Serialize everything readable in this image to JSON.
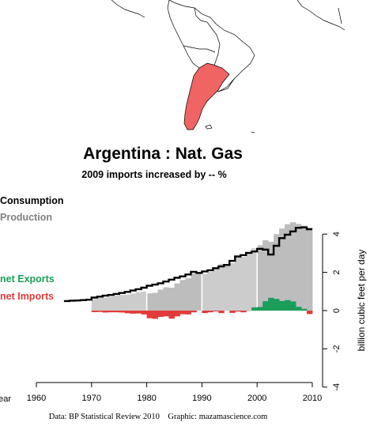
{
  "chart_data": {
    "type": "area",
    "title": "Argentina :  Nat. Gas",
    "subtitle": "2009 imports increased by -- %",
    "ylabel": "billion cubic feet per day",
    "xlabel": "Year",
    "source": "Data: BP Statistical Review 2010    Graphic: mazamascience.com",
    "xlim": [
      1960,
      2010
    ],
    "ylim": [
      -4,
      4
    ],
    "x_ticks": [
      1960,
      1970,
      1980,
      1990,
      2000,
      2010
    ],
    "y_ticks": [
      -4,
      -2,
      0,
      2,
      4
    ],
    "x_tick_labels": [
      "1960",
      "1970",
      "1980",
      "1990",
      "2000",
      "2010"
    ],
    "y_tick_labels": [
      "-4",
      "-2",
      "0",
      "2",
      "4"
    ],
    "legend": [
      "Consumption",
      "Production",
      "net Exports",
      "net Imports"
    ],
    "colors": {
      "consumption": "#000000",
      "production": "#cccccc",
      "production_alt": "#bdbdbd",
      "exports": "#1a9e5a",
      "imports": "#e33a3a",
      "decade_lines": "#ffffff",
      "map_highlight": "#f06464",
      "production_label": "#808080"
    },
    "years": [
      1965,
      1966,
      1967,
      1968,
      1969,
      1970,
      1971,
      1972,
      1973,
      1974,
      1975,
      1976,
      1977,
      1978,
      1979,
      1980,
      1981,
      1982,
      1983,
      1984,
      1985,
      1986,
      1987,
      1988,
      1989,
      1990,
      1991,
      1992,
      1993,
      1994,
      1995,
      1996,
      1997,
      1998,
      1999,
      2000,
      2001,
      2002,
      2003,
      2004,
      2005,
      2006,
      2007,
      2008,
      2009
    ],
    "series": [
      {
        "name": "Consumption",
        "values": [
          0.5,
          0.52,
          0.53,
          0.55,
          0.57,
          0.68,
          0.73,
          0.78,
          0.82,
          0.87,
          0.92,
          0.98,
          1.05,
          1.12,
          1.2,
          1.3,
          1.36,
          1.43,
          1.52,
          1.62,
          1.72,
          1.79,
          1.89,
          2.03,
          1.97,
          2.05,
          2.11,
          2.22,
          2.31,
          2.39,
          2.6,
          2.83,
          2.9,
          3.02,
          3.09,
          3.23,
          3.19,
          2.93,
          3.39,
          3.79,
          3.97,
          4.14,
          4.33,
          4.35,
          4.25
        ]
      },
      {
        "name": "Production",
        "values": [
          null,
          null,
          null,
          null,
          null,
          0.6,
          0.66,
          0.68,
          0.73,
          0.78,
          0.82,
          0.84,
          0.89,
          0.97,
          1.0,
          0.9,
          0.93,
          1.1,
          1.22,
          1.2,
          1.42,
          1.6,
          1.69,
          1.94,
          1.97,
          1.92,
          2.02,
          2.18,
          2.44,
          2.39,
          2.48,
          2.78,
          2.81,
          3.01,
          3.26,
          3.42,
          3.68,
          3.6,
          4.0,
          4.29,
          4.52,
          4.62,
          4.53,
          4.44,
          4.34
        ]
      },
      {
        "name": "net Exports",
        "values": [
          0,
          0,
          0,
          0,
          0,
          0,
          0,
          0,
          0,
          0,
          0,
          0,
          0,
          0,
          0,
          0,
          0,
          0,
          0,
          0,
          0,
          0,
          0,
          0,
          0,
          0,
          0,
          0,
          0,
          0,
          0,
          0,
          0,
          0,
          0.17,
          0.19,
          0.49,
          0.67,
          0.61,
          0.5,
          0.55,
          0.48,
          0.2,
          0.09,
          0
        ]
      },
      {
        "name": "net Imports",
        "values": [
          0,
          0,
          0,
          0,
          0,
          -0.08,
          -0.07,
          -0.1,
          -0.09,
          -0.09,
          -0.1,
          -0.14,
          -0.16,
          -0.15,
          -0.2,
          -0.4,
          -0.43,
          -0.33,
          -0.3,
          -0.42,
          -0.3,
          -0.19,
          -0.2,
          -0.09,
          0,
          -0.13,
          -0.09,
          -0.04,
          -0.13,
          0,
          -0.12,
          -0.05,
          -0.09,
          -0.01,
          0,
          0,
          0,
          0,
          0,
          0,
          0,
          0,
          0,
          0,
          -0.18
        ]
      }
    ]
  }
}
